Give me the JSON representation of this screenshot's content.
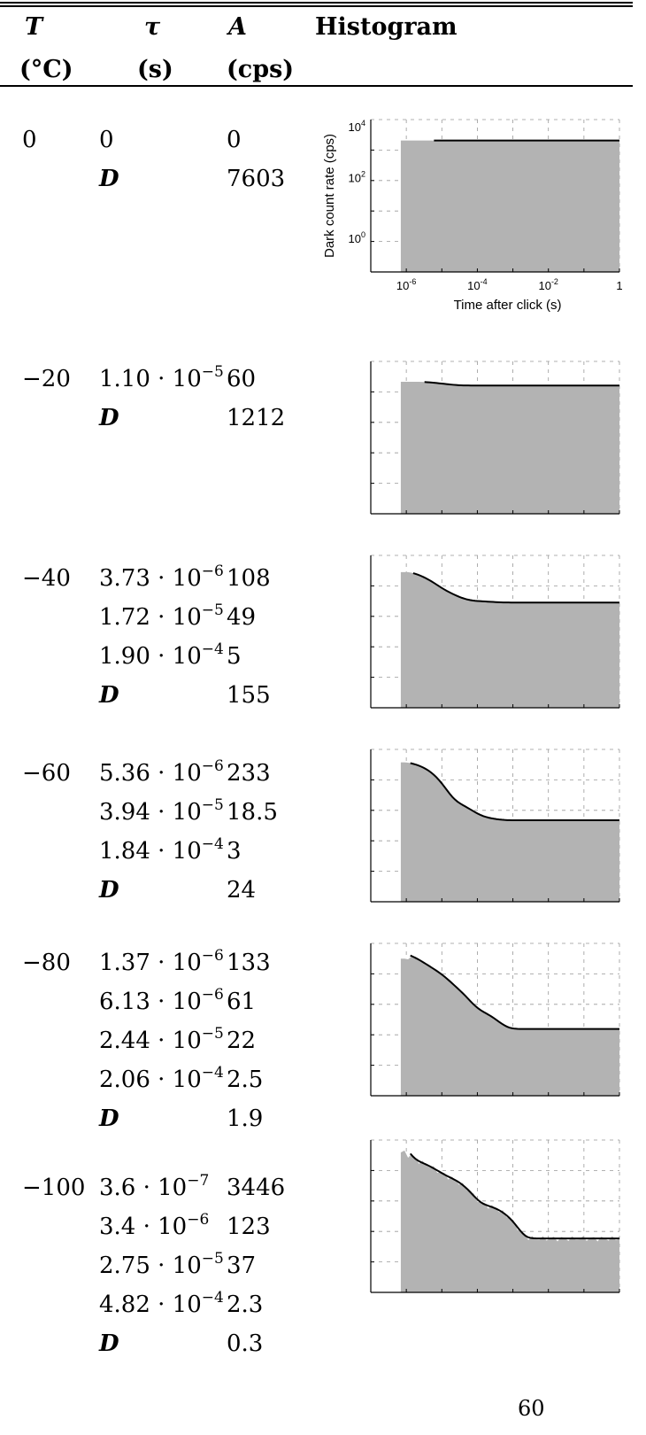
{
  "header": {
    "col_t": "T",
    "col_tau": "τ",
    "col_a": "A",
    "col_hist": "Histogram",
    "unit_t": "(°C)",
    "unit_tau": "(s)",
    "unit_a": "(cps)"
  },
  "rows": [
    {
      "temp": "0",
      "entries": [
        {
          "tau": "0",
          "a": "0"
        },
        {
          "tau": "D",
          "a": "7603"
        }
      ]
    },
    {
      "temp": "−20",
      "entries": [
        {
          "tau": "1.10 · 10",
          "exp": "−5",
          "a": "60"
        },
        {
          "tau": "D",
          "a": "1212"
        }
      ]
    },
    {
      "temp": "−40",
      "entries": [
        {
          "tau": "3.73 · 10",
          "exp": "−6",
          "a": "108"
        },
        {
          "tau": "1.72 · 10",
          "exp": "−5",
          "a": "49"
        },
        {
          "tau": "1.90 · 10",
          "exp": "−4",
          "a": "5"
        },
        {
          "tau": "D",
          "a": "155"
        }
      ]
    },
    {
      "temp": "−60",
      "entries": [
        {
          "tau": "5.36 · 10",
          "exp": "−6",
          "a": "233"
        },
        {
          "tau": "3.94 · 10",
          "exp": "−5",
          "a": "18.5"
        },
        {
          "tau": "1.84 · 10",
          "exp": "−4",
          "a": "3"
        },
        {
          "tau": "D",
          "a": "24"
        }
      ]
    },
    {
      "temp": "−80",
      "entries": [
        {
          "tau": "1.37 · 10",
          "exp": "−6",
          "a": "133"
        },
        {
          "tau": "6.13 · 10",
          "exp": "−6",
          "a": "61"
        },
        {
          "tau": "2.44 · 10",
          "exp": "−5",
          "a": "22"
        },
        {
          "tau": "2.06 · 10",
          "exp": "−4",
          "a": "2.5"
        },
        {
          "tau": "D",
          "a": "1.9"
        }
      ]
    },
    {
      "temp": "−100",
      "entries": [
        {
          "tau": "3.6 · 10",
          "exp": "−7",
          "a": "3446"
        },
        {
          "tau": "3.4 · 10",
          "exp": "−6",
          "a": "123"
        },
        {
          "tau": "2.75 · 10",
          "exp": "−5",
          "a": "37"
        },
        {
          "tau": "4.82 · 10",
          "exp": "−4",
          "a": "2.3"
        },
        {
          "tau": "D",
          "a": "0.3"
        }
      ]
    }
  ],
  "chart_data": {
    "type": "area",
    "xscale": "log",
    "yscale": "log",
    "xlim": [
      1e-07,
      1
    ],
    "ylim": [
      0.1,
      10000
    ],
    "xlabel": "Time after click (s)",
    "ylabel": "Dark count rate (cps)",
    "xticks": [
      {
        "base": "10",
        "exp": "-6"
      },
      {
        "base": "10",
        "exp": "-4"
      },
      {
        "base": "10",
        "exp": "-2"
      },
      {
        "base": "1",
        "exp": ""
      }
    ],
    "yticks": [
      {
        "base": "10",
        "exp": "4"
      },
      {
        "base": "10",
        "exp": "2"
      },
      {
        "base": "10",
        "exp": "0"
      }
    ],
    "fill_color": "#b3b3b3",
    "line_color": "#000000",
    "hist_start": 7e-07
  },
  "page_number": "60"
}
